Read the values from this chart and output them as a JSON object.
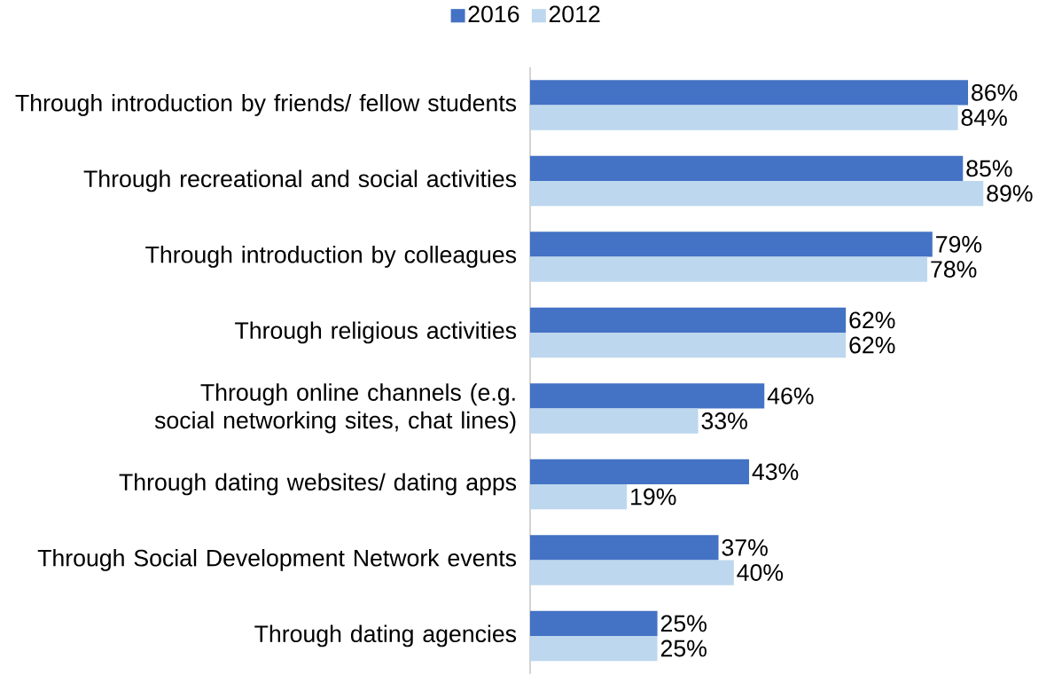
{
  "chart_data": {
    "type": "bar",
    "orientation": "horizontal",
    "categories": [
      "Through introduction by friends/ fellow students",
      "Through recreational and social activities",
      "Through introduction by colleagues",
      "Through religious activities",
      "Through online channels (e.g. social networking sites, chat lines)",
      "Through dating websites/ dating apps",
      "Through Social Development Network events",
      "Through dating agencies"
    ],
    "series": [
      {
        "name": "2016",
        "color": "#4472c4",
        "values": [
          86,
          85,
          79,
          62,
          46,
          43,
          37,
          25
        ],
        "value_labels": [
          "86%",
          "85%",
          "79%",
          "62%",
          "46%",
          "43%",
          "37%",
          "25%"
        ]
      },
      {
        "name": "2012",
        "color": "#bdd7ee",
        "values": [
          84,
          89,
          78,
          62,
          33,
          19,
          40,
          25
        ],
        "value_labels": [
          "84%",
          "89%",
          "78%",
          "62%",
          "33%",
          "19%",
          "40%",
          "25%"
        ]
      }
    ],
    "legend": "top",
    "tick_labels": "y"
  }
}
